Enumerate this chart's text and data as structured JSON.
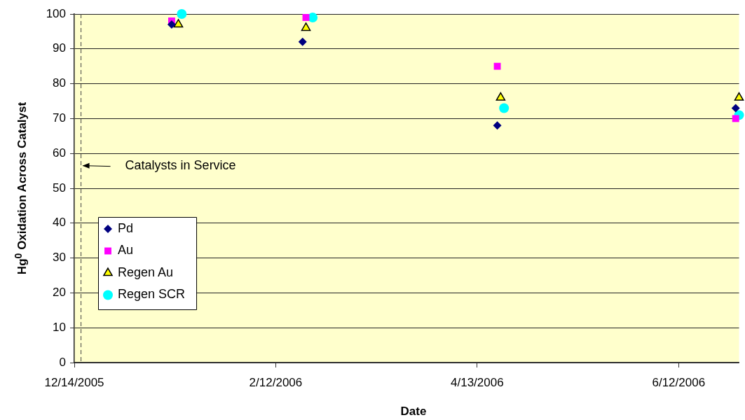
{
  "chart_data": {
    "type": "scatter",
    "xlabel": "Date",
    "ylabel": "Hg$^{0}$ Oxidation Across Catalyst",
    "xlim": [
      "2005-12-14",
      "2006-06-30"
    ],
    "xticks": [
      {
        "value": "2005-12-14",
        "label": "12/14/2005"
      },
      {
        "value": "2006-02-12",
        "label": "2/12/2006"
      },
      {
        "value": "2006-04-13",
        "label": "4/13/2006"
      },
      {
        "value": "2006-06-12",
        "label": "6/12/2006"
      }
    ],
    "ylim": [
      0,
      100
    ],
    "yticks": [
      0,
      10,
      20,
      30,
      40,
      50,
      60,
      70,
      80,
      90,
      100
    ],
    "grid": "y",
    "legend": "left",
    "ref_lines": [
      {
        "axis": "x",
        "value": "2005-12-16",
        "label": "Catalysts in Service",
        "color": "#404040",
        "line_style": "dashed"
      }
    ],
    "series": [
      {
        "name": "Pd",
        "color": "#000080",
        "marker": "diamond",
        "x": [
          "2006-01-12",
          "2006-02-20",
          "2006-04-19",
          "2006-06-29"
        ],
        "values": [
          97,
          92,
          68,
          73
        ]
      },
      {
        "name": "Au",
        "color": "#ff00ff",
        "marker": "square",
        "x": [
          "2006-01-12",
          "2006-02-21",
          "2006-04-19",
          "2006-06-29"
        ],
        "values": [
          98,
          99,
          85,
          70
        ]
      },
      {
        "name": "Regen Au",
        "color": "#ffff00",
        "marker": "triangle",
        "x": [
          "2006-01-14",
          "2006-02-21",
          "2006-04-20",
          "2006-06-30"
        ],
        "values": [
          97,
          96,
          76,
          76
        ]
      },
      {
        "name": "Regen SCR",
        "color": "#00ffff",
        "marker": "circle",
        "x": [
          "2006-01-15",
          "2006-02-23",
          "2006-04-21",
          "2006-06-30"
        ],
        "values": [
          100,
          99,
          73,
          71
        ]
      }
    ]
  }
}
